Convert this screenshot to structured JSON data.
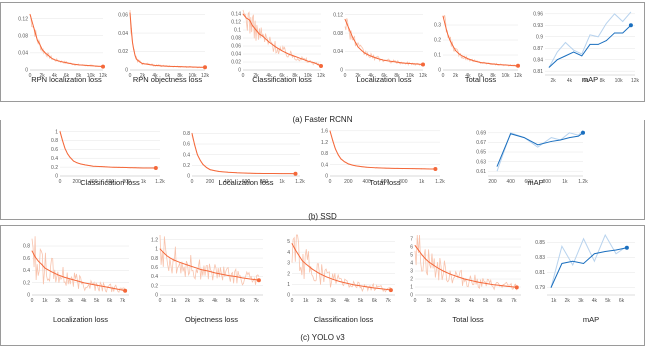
{
  "captions": {
    "frcnn": "(a) Faster RCNN",
    "ssd": "(b) SSD",
    "yolo": "(c) YOLO v3"
  },
  "colors": {
    "loss": "#f4683a",
    "loss_raw": "#f8c3ad",
    "map": "#1a6fbf",
    "map_raw": "#b8d3ee"
  },
  "chart_data": [
    {
      "id": "frcnn-rpn-loc",
      "type": "line",
      "title": "RPN localization loss",
      "xlabel": "",
      "ylabel": "",
      "xlim": [
        0,
        12000
      ],
      "ylim": [
        0,
        0.14
      ],
      "xticks": [
        0,
        2000,
        4000,
        6000,
        8000,
        10000,
        12000
      ],
      "xtick_labels": [
        "0",
        "2k",
        "4k",
        "6k",
        "8k",
        "10k",
        "12k"
      ],
      "yticks": [
        0,
        0.04,
        0.08,
        0.12
      ],
      "ytick_labels": [
        "0",
        "0.04",
        "0.08",
        "0.12"
      ],
      "noise": 0.12,
      "x": [
        0,
        300,
        600,
        900,
        1200,
        1600,
        2000,
        2500,
        3000,
        3500,
        4000,
        5000,
        6000,
        7000,
        8000,
        9000,
        10000,
        11000,
        12000
      ],
      "y": [
        0.13,
        0.115,
        0.1,
        0.085,
        0.07,
        0.06,
        0.048,
        0.04,
        0.034,
        0.028,
        0.024,
        0.02,
        0.017,
        0.014,
        0.012,
        0.011,
        0.01,
        0.009,
        0.008
      ]
    },
    {
      "id": "frcnn-rpn-obj",
      "type": "line",
      "title": "RPN objectness loss",
      "xlabel": "",
      "ylabel": "",
      "xlim": [
        0,
        12000
      ],
      "ylim": [
        0,
        0.065
      ],
      "xticks": [
        0,
        2000,
        4000,
        6000,
        8000,
        10000,
        12000
      ],
      "xtick_labels": [
        "0",
        "2k",
        "4k",
        "6k",
        "8k",
        "10k",
        "12k"
      ],
      "yticks": [
        0,
        0.02,
        0.04,
        0.06
      ],
      "ytick_labels": [
        "0",
        "0.02",
        "0.04",
        "0.06"
      ],
      "noise": 0.15,
      "x": [
        0,
        200,
        400,
        600,
        800,
        1000,
        1500,
        2000,
        3000,
        4000,
        5000,
        6000,
        7000,
        8000,
        9000,
        10000,
        11000,
        12000
      ],
      "y": [
        0.062,
        0.045,
        0.03,
        0.022,
        0.016,
        0.012,
        0.009,
        0.007,
        0.006,
        0.005,
        0.0045,
        0.004,
        0.0038,
        0.0036,
        0.0034,
        0.0032,
        0.003,
        0.003
      ]
    },
    {
      "id": "frcnn-cls",
      "type": "line",
      "title": "Classification loss",
      "xlabel": "",
      "ylabel": "",
      "xlim": [
        0,
        12000
      ],
      "ylim": [
        0,
        0.15
      ],
      "xticks": [
        0,
        2000,
        4000,
        6000,
        8000,
        10000,
        12000
      ],
      "xtick_labels": [
        "0",
        "2k",
        "4k",
        "6k",
        "8k",
        "10k",
        "12k"
      ],
      "yticks": [
        0,
        0.02,
        0.04,
        0.06,
        0.08,
        0.1,
        0.12,
        0.14
      ],
      "ytick_labels": [
        "0",
        "0.02",
        "0.04",
        "0.06",
        "0.08",
        "0.1",
        "0.12",
        "0.14"
      ],
      "noise": 0.2,
      "x": [
        0,
        500,
        1000,
        1500,
        2000,
        2500,
        3000,
        4000,
        5000,
        6000,
        7000,
        8000,
        9000,
        10000,
        11000,
        12000
      ],
      "y": [
        0.14,
        0.13,
        0.125,
        0.11,
        0.1,
        0.09,
        0.085,
        0.07,
        0.058,
        0.048,
        0.04,
        0.034,
        0.028,
        0.022,
        0.018,
        0.01
      ]
    },
    {
      "id": "frcnn-loc",
      "type": "line",
      "title": "Localization loss",
      "xlabel": "",
      "ylabel": "",
      "xlim": [
        0,
        12000
      ],
      "ylim": [
        0,
        0.13
      ],
      "xticks": [
        0,
        2000,
        4000,
        6000,
        8000,
        10000,
        12000
      ],
      "xtick_labels": [
        "0",
        "2k",
        "4k",
        "6k",
        "8k",
        "10k",
        "12k"
      ],
      "yticks": [
        0,
        0.04,
        0.08,
        0.12
      ],
      "ytick_labels": [
        "0",
        "0.04",
        "0.08",
        "0.12"
      ],
      "noise": 0.15,
      "x": [
        0,
        300,
        600,
        900,
        1200,
        1600,
        2000,
        2500,
        3000,
        4000,
        5000,
        6000,
        7000,
        8000,
        9000,
        10000,
        11000,
        12000
      ],
      "y": [
        0.11,
        0.1,
        0.09,
        0.08,
        0.07,
        0.06,
        0.05,
        0.043,
        0.037,
        0.03,
        0.025,
        0.021,
        0.019,
        0.017,
        0.015,
        0.014,
        0.013,
        0.012
      ]
    },
    {
      "id": "frcnn-total",
      "type": "line",
      "title": "Total loss",
      "xlabel": "",
      "ylabel": "",
      "xlim": [
        0,
        12000
      ],
      "ylim": [
        0,
        0.4
      ],
      "xticks": [
        0,
        2000,
        4000,
        6000,
        8000,
        10000,
        12000
      ],
      "xtick_labels": [
        "0",
        "2k",
        "4k",
        "6k",
        "8k",
        "10k",
        "12k"
      ],
      "yticks": [
        0,
        0.1,
        0.2,
        0.3
      ],
      "ytick_labels": [
        "0",
        "0.1",
        "0.2",
        "0.3"
      ],
      "noise": 0.12,
      "x": [
        0,
        300,
        600,
        900,
        1200,
        1600,
        2000,
        2500,
        3000,
        4000,
        5000,
        6000,
        7000,
        8000,
        9000,
        10000,
        11000,
        12000
      ],
      "y": [
        0.36,
        0.31,
        0.26,
        0.22,
        0.19,
        0.16,
        0.13,
        0.11,
        0.095,
        0.075,
        0.06,
        0.05,
        0.045,
        0.04,
        0.036,
        0.033,
        0.03,
        0.028
      ]
    },
    {
      "id": "frcnn-map",
      "type": "line",
      "title": "mAP",
      "xlabel": "",
      "ylabel": "",
      "xlim": [
        1000,
        12000
      ],
      "ylim": [
        0.8,
        0.97
      ],
      "xticks": [
        2000,
        4000,
        6000,
        8000,
        10000,
        12000
      ],
      "xtick_labels": [
        "2k",
        "4k",
        "6k",
        "8k",
        "10k",
        "12k"
      ],
      "yticks": [
        0.81,
        0.84,
        0.87,
        0.9,
        0.93,
        0.96
      ],
      "ytick_labels": [
        "0.81",
        "0.84",
        "0.87",
        "0.9",
        "0.93",
        "0.96"
      ],
      "raw_y": [
        0.82,
        0.86,
        0.885,
        0.865,
        0.855,
        0.905,
        0.9,
        0.935,
        0.96,
        0.94,
        0.965
      ],
      "x": [
        1500,
        2500,
        3500,
        4500,
        5500,
        6500,
        7500,
        8500,
        9500,
        10500,
        11500
      ],
      "y": [
        0.82,
        0.84,
        0.85,
        0.86,
        0.85,
        0.88,
        0.88,
        0.89,
        0.91,
        0.91,
        0.93
      ]
    },
    {
      "id": "ssd-cls",
      "type": "line",
      "title": "Classification loss",
      "xlabel": "",
      "ylabel": "",
      "xlim": [
        0,
        1200
      ],
      "ylim": [
        0,
        1.08
      ],
      "xticks": [
        0,
        200,
        400,
        600,
        800,
        1000,
        1200
      ],
      "xtick_labels": [
        "0",
        "200",
        "400",
        "600",
        "800",
        "1k",
        "1.2k"
      ],
      "yticks": [
        0,
        0.2,
        0.4,
        0.6,
        0.8,
        1
      ],
      "ytick_labels": [
        "0",
        "0.2",
        "0.4",
        "0.6",
        "0.8",
        "1"
      ],
      "noise": 0.02,
      "x": [
        0,
        30,
        60,
        90,
        120,
        160,
        200,
        250,
        300,
        400,
        500,
        600,
        700,
        800,
        900,
        1000,
        1100,
        1150
      ],
      "y": [
        1.0,
        0.8,
        0.62,
        0.5,
        0.42,
        0.34,
        0.3,
        0.27,
        0.25,
        0.22,
        0.21,
        0.2,
        0.195,
        0.19,
        0.185,
        0.18,
        0.18,
        0.18
      ]
    },
    {
      "id": "ssd-loc",
      "type": "line",
      "title": "Localization loss",
      "xlabel": "",
      "ylabel": "",
      "xlim": [
        0,
        1200
      ],
      "ylim": [
        0,
        0.9
      ],
      "xticks": [
        0,
        200,
        400,
        600,
        800,
        1000,
        1200
      ],
      "xtick_labels": [
        "0",
        "200",
        "400",
        "600",
        "800",
        "1k",
        "1.2k"
      ],
      "yticks": [
        0,
        0.2,
        0.4,
        0.6,
        0.8
      ],
      "ytick_labels": [
        "0",
        "0.2",
        "0.4",
        "0.6",
        "0.8"
      ],
      "noise": 0.03,
      "x": [
        0,
        30,
        60,
        90,
        120,
        160,
        200,
        250,
        300,
        400,
        500,
        600,
        700,
        800,
        900,
        1000,
        1100,
        1150
      ],
      "y": [
        0.8,
        0.58,
        0.4,
        0.3,
        0.22,
        0.16,
        0.12,
        0.1,
        0.085,
        0.07,
        0.06,
        0.055,
        0.05,
        0.048,
        0.046,
        0.045,
        0.044,
        0.043
      ]
    },
    {
      "id": "ssd-total",
      "type": "line",
      "title": "Total loss",
      "xlabel": "",
      "ylabel": "",
      "xlim": [
        0,
        1200
      ],
      "ylim": [
        0,
        1.7
      ],
      "xticks": [
        0,
        200,
        400,
        600,
        800,
        1000,
        1200
      ],
      "xtick_labels": [
        "0",
        "200",
        "400",
        "600",
        "800",
        "1k",
        "1.2k"
      ],
      "yticks": [
        0,
        0.4,
        0.8,
        1.2,
        1.6
      ],
      "ytick_labels": [
        "0",
        "0.4",
        "0.8",
        "1.2",
        "1.6"
      ],
      "noise": 0.02,
      "x": [
        0,
        30,
        60,
        90,
        120,
        160,
        200,
        250,
        300,
        400,
        500,
        600,
        700,
        800,
        900,
        1000,
        1100,
        1150
      ],
      "y": [
        1.6,
        1.25,
        0.95,
        0.75,
        0.6,
        0.5,
        0.43,
        0.38,
        0.35,
        0.31,
        0.29,
        0.28,
        0.27,
        0.265,
        0.26,
        0.255,
        0.25,
        0.25
      ]
    },
    {
      "id": "ssd-map",
      "type": "line",
      "title": "mAP",
      "xlabel": "",
      "ylabel": "",
      "xlim": [
        150,
        1200
      ],
      "ylim": [
        0.6,
        0.7
      ],
      "xticks": [
        200,
        400,
        600,
        800,
        1000,
        1200
      ],
      "xtick_labels": [
        "200",
        "400",
        "600",
        "800",
        "1k",
        "1.2k"
      ],
      "yticks": [
        0.61,
        0.63,
        0.65,
        0.67,
        0.69
      ],
      "ytick_labels": [
        "0.61",
        "0.63",
        "0.65",
        "0.67",
        "0.69"
      ],
      "raw_y": [
        0.61,
        0.69,
        0.68,
        0.66,
        0.68,
        0.675,
        0.69,
        0.685,
        0.695
      ],
      "x": [
        250,
        400,
        550,
        700,
        850,
        950,
        1050,
        1150,
        1200
      ],
      "y": [
        0.62,
        0.688,
        0.68,
        0.665,
        0.672,
        0.675,
        0.68,
        0.683,
        0.69
      ]
    },
    {
      "id": "yolo-loc",
      "type": "line",
      "title": "Localization loss",
      "xlabel": "",
      "ylabel": "",
      "xlim": [
        0,
        7500
      ],
      "ylim": [
        0,
        0.98
      ],
      "xticks": [
        0,
        1000,
        2000,
        3000,
        4000,
        5000,
        6000,
        7000
      ],
      "xtick_labels": [
        "0",
        "1k",
        "2k",
        "3k",
        "4k",
        "5k",
        "6k",
        "7k"
      ],
      "yticks": [
        0,
        0.2,
        0.4,
        0.6,
        0.8
      ],
      "ytick_labels": [
        "0",
        "0.2",
        "0.4",
        "0.6",
        "0.8"
      ],
      "noise": 0.45,
      "x": [
        0,
        250,
        500,
        750,
        1000,
        1500,
        2000,
        2500,
        3000,
        3500,
        4000,
        4500,
        5000,
        5500,
        6000,
        6500,
        7000,
        7200
      ],
      "y": [
        0.72,
        0.62,
        0.55,
        0.5,
        0.44,
        0.38,
        0.33,
        0.29,
        0.26,
        0.23,
        0.2,
        0.18,
        0.16,
        0.14,
        0.12,
        0.1,
        0.08,
        0.07
      ]
    },
    {
      "id": "yolo-obj",
      "type": "line",
      "title": "Objectness loss",
      "xlabel": "",
      "ylabel": "",
      "xlim": [
        0,
        7500
      ],
      "ylim": [
        0,
        1.3
      ],
      "xticks": [
        0,
        1000,
        2000,
        3000,
        4000,
        5000,
        6000,
        7000
      ],
      "xtick_labels": [
        "0",
        "1k",
        "2k",
        "3k",
        "4k",
        "5k",
        "6k",
        "7k"
      ],
      "yticks": [
        0,
        0.2,
        0.4,
        0.6,
        0.8,
        1,
        1.2
      ],
      "ytick_labels": [
        "0",
        "0.2",
        "0.4",
        "0.6",
        "0.8",
        "1",
        "1.2"
      ],
      "noise": 0.3,
      "x": [
        0,
        250,
        500,
        750,
        1000,
        1500,
        2000,
        2500,
        3000,
        3500,
        4000,
        4500,
        5000,
        5500,
        6000,
        6500,
        7000,
        7200
      ],
      "y": [
        1.0,
        0.92,
        0.85,
        0.8,
        0.76,
        0.7,
        0.65,
        0.6,
        0.55,
        0.52,
        0.48,
        0.45,
        0.42,
        0.4,
        0.37,
        0.35,
        0.33,
        0.32
      ]
    },
    {
      "id": "yolo-cls",
      "type": "line",
      "title": "Classification loss",
      "xlabel": "",
      "ylabel": "",
      "xlim": [
        0,
        7500
      ],
      "ylim": [
        0,
        5.6
      ],
      "xticks": [
        0,
        1000,
        2000,
        3000,
        4000,
        5000,
        6000,
        7000
      ],
      "xtick_labels": [
        "0",
        "1k",
        "2k",
        "3k",
        "4k",
        "5k",
        "6k",
        "7k"
      ],
      "yticks": [
        0,
        1,
        2,
        3,
        4,
        5
      ],
      "ytick_labels": [
        "0",
        "1",
        "2",
        "3",
        "4",
        "5"
      ],
      "noise": 0.4,
      "x": [
        0,
        250,
        500,
        750,
        1000,
        1500,
        2000,
        2500,
        3000,
        3500,
        4000,
        4500,
        5000,
        5500,
        6000,
        6500,
        7000,
        7200
      ],
      "y": [
        4.8,
        4.2,
        3.7,
        3.2,
        2.9,
        2.4,
        2.0,
        1.7,
        1.45,
        1.25,
        1.1,
        0.95,
        0.85,
        0.75,
        0.65,
        0.58,
        0.5,
        0.45
      ]
    },
    {
      "id": "yolo-total",
      "type": "line",
      "title": "Total loss",
      "xlabel": "",
      "ylabel": "",
      "xlim": [
        0,
        7500
      ],
      "ylim": [
        0,
        7.5
      ],
      "xticks": [
        0,
        1000,
        2000,
        3000,
        4000,
        5000,
        6000,
        7000
      ],
      "xtick_labels": [
        "0",
        "1k",
        "2k",
        "3k",
        "4k",
        "5k",
        "6k",
        "7k"
      ],
      "yticks": [
        0,
        1,
        2,
        3,
        4,
        5,
        6,
        7
      ],
      "ytick_labels": [
        "0",
        "1",
        "2",
        "3",
        "4",
        "5",
        "6",
        "7"
      ],
      "noise": 0.35,
      "x": [
        0,
        250,
        500,
        750,
        1000,
        1500,
        2000,
        2500,
        3000,
        3500,
        4000,
        4500,
        5000,
        5500,
        6000,
        6500,
        7000,
        7200
      ],
      "y": [
        6.2,
        5.6,
        5.0,
        4.5,
        4.1,
        3.5,
        3.0,
        2.6,
        2.3,
        2.0,
        1.8,
        1.6,
        1.45,
        1.3,
        1.2,
        1.1,
        1.0,
        0.95
      ]
    },
    {
      "id": "yolo-map",
      "type": "line",
      "title": "mAP",
      "xlabel": "",
      "ylabel": "",
      "xlim": [
        500,
        7000
      ],
      "ylim": [
        0.78,
        0.86
      ],
      "xticks": [
        1000,
        2000,
        3000,
        4000,
        5000,
        6000
      ],
      "xtick_labels": [
        "1k",
        "2k",
        "3k",
        "4k",
        "5k",
        "6k"
      ],
      "yticks": [
        0.79,
        0.81,
        0.83,
        0.85
      ],
      "ytick_labels": [
        "0.79",
        "0.81",
        "0.83",
        "0.85"
      ],
      "raw_y": [
        0.79,
        0.845,
        0.82,
        0.855,
        0.825,
        0.86,
        0.835,
        0.845
      ],
      "x": [
        800,
        1600,
        2400,
        3200,
        4000,
        4800,
        5600,
        6400
      ],
      "y": [
        0.79,
        0.822,
        0.825,
        0.822,
        0.835,
        0.838,
        0.84,
        0.843
      ]
    }
  ]
}
